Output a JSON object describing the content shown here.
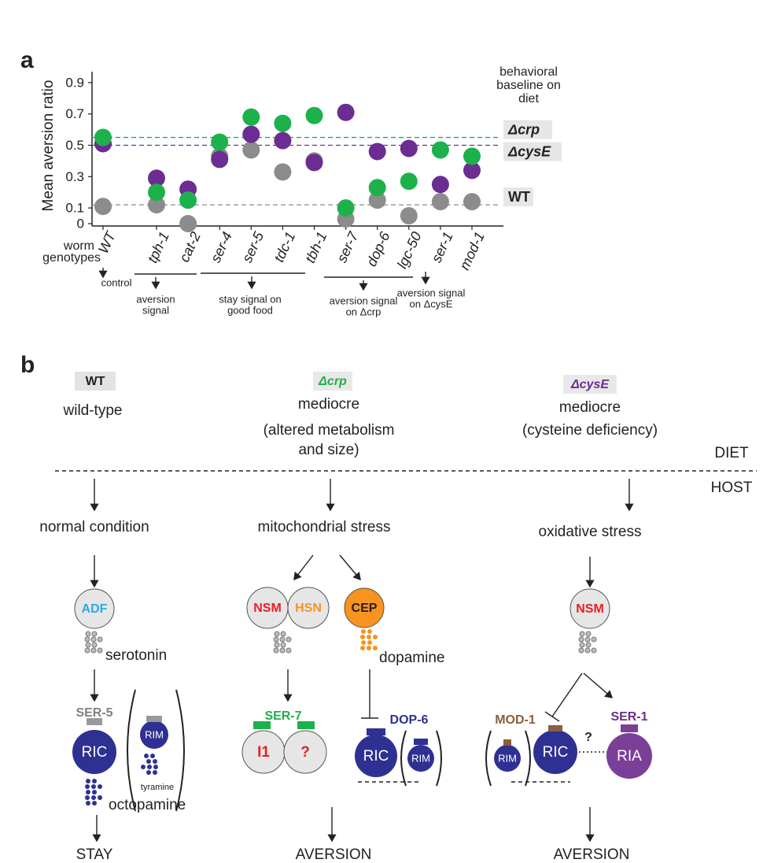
{
  "chart_data": {
    "type": "dot",
    "panel_label": "a",
    "ylabel": "Mean aversion ratio",
    "xlabel": [
      "worm",
      "genotypes"
    ],
    "categories": [
      "WT",
      "tph-1",
      "cat-2",
      "ser-4",
      "ser-5",
      "tdc-1",
      "tbh-1",
      "ser-7",
      "dop-6",
      "lgc-50",
      "ser-1",
      "mod-1"
    ],
    "series": [
      {
        "name": "WT",
        "color": "#8c8c8c",
        "baseline": 0.12,
        "values": [
          0.11,
          0.12,
          0,
          0.43,
          0.47,
          0.33,
          0.4,
          0.03,
          0.15,
          0.05,
          0.14,
          0.14
        ]
      },
      {
        "name": "ΔcysE",
        "color": "#6b2d91",
        "baseline": 0.5,
        "values": [
          0.51,
          0.29,
          0.22,
          0.41,
          0.57,
          0.53,
          0.39,
          0.71,
          0.46,
          0.48,
          0.25,
          0.34
        ]
      },
      {
        "name": "Δcrp",
        "color": "#1db14b",
        "baseline": 0.55,
        "values": [
          0.55,
          0.2,
          0.15,
          0.52,
          0.68,
          0.64,
          0.69,
          0.1,
          0.23,
          0.27,
          0.47,
          0.43
        ]
      }
    ],
    "baseline_title": [
      "behavioral",
      "baseline on",
      "diet"
    ],
    "groups": [
      {
        "label": [
          "control"
        ]
      },
      {
        "label": [
          "aversion",
          "signal"
        ]
      },
      {
        "label": [
          "stay signal on",
          "good food"
        ]
      },
      {
        "label": [
          "aversion signal",
          "on Δcrp"
        ]
      },
      {
        "label": [
          "aversion signal",
          "on ΔcysE"
        ]
      }
    ],
    "ylim": [
      0,
      0.95
    ],
    "yticks": [
      0,
      0.1,
      0.3,
      0.5,
      0.7,
      0.9
    ]
  },
  "panel_b": {
    "label": "b",
    "diet_label": "DIET",
    "host_label": "HOST",
    "columns": [
      {
        "diet": "WT",
        "description": [
          "wild-type"
        ],
        "state": "normal condition",
        "neurons": [
          "ADF"
        ],
        "transmitter": "serotonin",
        "receptor": "SER-5",
        "targets": [
          "RIC",
          "RIM"
        ],
        "secondary": [
          "tyramine",
          "octopamine"
        ],
        "outcome": "STAY"
      },
      {
        "diet": "Δcrp",
        "description": [
          "mediocre",
          "(altered metabolism",
          "and size)"
        ],
        "state": "mitochondrial stress",
        "neurons": [
          "NSM",
          "HSN",
          "CEP"
        ],
        "transmitter": "dopamine",
        "receptor": "SER-7",
        "receptor2": "DOP-6",
        "targets": [
          "I1",
          "?",
          "RIC",
          "RIM"
        ],
        "outcome": "AVERSION"
      },
      {
        "diet": "ΔcysE",
        "description": [
          "mediocre",
          "(cysteine deficiency)"
        ],
        "state": "oxidative stress",
        "neurons": [
          "NSM"
        ],
        "receptor": "MOD-1",
        "receptor2": "SER-1",
        "targets": [
          "RIM",
          "RIC",
          "RIA"
        ],
        "link": "?",
        "outcome": "AVERSION"
      }
    ]
  }
}
